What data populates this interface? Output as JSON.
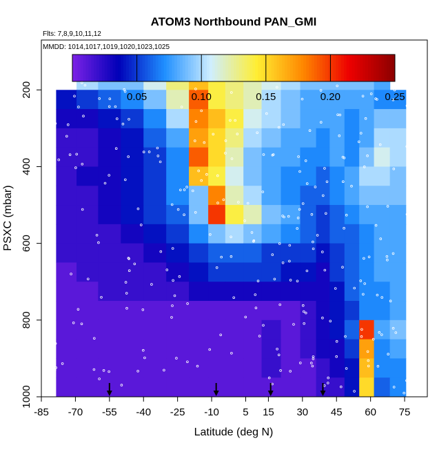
{
  "chart_data": {
    "type": "heatmap",
    "title": "ATOM3 Northbound PAN_GMI",
    "subtitle_flights": "Flts: 7,8,9,10,11,12",
    "subtitle_dates": "MMDD: 1014,1017,1019,1020,1023,1025",
    "xlabel": "Latitude (deg N)",
    "ylabel": "PSXC (mbar)",
    "xlim": [
      -85,
      85
    ],
    "ylim": [
      1000,
      70
    ],
    "y_reversed": true,
    "x_ticks": [
      "-85",
      "-70",
      "-55",
      "-40",
      "-25",
      "-10",
      "5",
      "15",
      "30",
      "45",
      "60",
      "75"
    ],
    "y_ticks": [
      "200",
      "400",
      "600",
      "800",
      "1000"
    ],
    "colorbar": {
      "min": 0.0,
      "max": 0.25,
      "ticks": [
        "0.05",
        "0.10",
        "0.15",
        "0.20",
        "0.25"
      ],
      "colors": [
        "#7d22e6",
        "#0000b8",
        "#1f8fff",
        "#cfeeff",
        "#ffee33",
        "#ff8800",
        "#ee0000",
        "#8b0000"
      ]
    },
    "arrows_latitude": [
      -55,
      -8,
      16,
      39
    ],
    "profile_latitudes": [
      -74,
      -65,
      -55,
      -45,
      -35,
      -25,
      -15,
      -8,
      0,
      8,
      16,
      25,
      33,
      39,
      45,
      52,
      58,
      65,
      72
    ],
    "pressure_levels": [
      175,
      225,
      275,
      325,
      375,
      425,
      475,
      525,
      575,
      625,
      675,
      725,
      775,
      825,
      875,
      925,
      975
    ],
    "values": [
      [
        0.1,
        0.1,
        0.09,
        0.09,
        0.11,
        0.13,
        0.16,
        0.14,
        0.13,
        0.12,
        0.11,
        0.1,
        0.09,
        0.09,
        0.09,
        0.09,
        0.09,
        0.08,
        0.08
      ],
      [
        0.04,
        0.05,
        0.06,
        0.07,
        0.09,
        0.12,
        0.19,
        0.14,
        0.13,
        0.12,
        0.1,
        0.09,
        0.08,
        0.08,
        0.08,
        0.08,
        0.08,
        0.07,
        0.07
      ],
      [
        0.03,
        0.03,
        0.04,
        0.05,
        0.07,
        0.1,
        0.18,
        0.16,
        0.14,
        0.11,
        0.1,
        0.09,
        0.08,
        0.08,
        0.08,
        0.07,
        0.08,
        0.09,
        0.09
      ],
      [
        0.02,
        0.02,
        0.03,
        0.04,
        0.06,
        0.08,
        0.17,
        0.15,
        0.13,
        0.1,
        0.09,
        0.08,
        0.08,
        0.07,
        0.08,
        0.07,
        0.08,
        0.1,
        0.1
      ],
      [
        0.02,
        0.02,
        0.03,
        0.04,
        0.05,
        0.07,
        0.19,
        0.15,
        0.12,
        0.09,
        0.08,
        0.08,
        0.07,
        0.07,
        0.08,
        0.07,
        0.09,
        0.11,
        0.1
      ],
      [
        0.02,
        0.03,
        0.03,
        0.04,
        0.05,
        0.07,
        0.16,
        0.14,
        0.11,
        0.09,
        0.08,
        0.07,
        0.07,
        0.06,
        0.07,
        0.08,
        0.1,
        0.1,
        0.09
      ],
      [
        0.02,
        0.02,
        0.03,
        0.04,
        0.05,
        0.07,
        0.09,
        0.18,
        0.12,
        0.1,
        0.08,
        0.07,
        0.06,
        0.06,
        0.07,
        0.08,
        0.09,
        0.09,
        0.09
      ],
      [
        0.02,
        0.02,
        0.03,
        0.04,
        0.05,
        0.06,
        0.09,
        0.2,
        0.14,
        0.12,
        0.09,
        0.08,
        0.06,
        0.05,
        0.06,
        0.07,
        0.08,
        0.08,
        0.08
      ],
      [
        0.02,
        0.02,
        0.02,
        0.03,
        0.04,
        0.05,
        0.07,
        0.09,
        0.1,
        0.09,
        0.08,
        0.07,
        0.06,
        0.05,
        0.06,
        0.06,
        0.07,
        0.08,
        0.08
      ],
      [
        0.02,
        0.02,
        0.02,
        0.02,
        0.03,
        0.04,
        0.05,
        0.06,
        0.06,
        0.06,
        0.05,
        0.05,
        0.05,
        0.04,
        0.05,
        0.06,
        0.07,
        0.08,
        0.08
      ],
      [
        0.01,
        0.02,
        0.02,
        0.02,
        0.02,
        0.03,
        0.04,
        0.05,
        0.05,
        0.05,
        0.05,
        0.04,
        0.04,
        0.03,
        0.05,
        0.06,
        0.07,
        0.08,
        0.08
      ],
      [
        0.01,
        0.01,
        0.02,
        0.02,
        0.02,
        0.02,
        0.03,
        0.03,
        0.03,
        0.03,
        0.03,
        0.03,
        0.03,
        0.03,
        0.04,
        0.06,
        0.07,
        0.07,
        0.08
      ],
      [
        0.01,
        0.01,
        0.01,
        0.01,
        0.01,
        0.01,
        0.01,
        0.01,
        0.01,
        0.01,
        0.01,
        0.01,
        0.02,
        0.03,
        0.04,
        0.05,
        0.07,
        0.07,
        0.08
      ],
      [
        0.01,
        0.01,
        0.01,
        0.01,
        0.01,
        0.01,
        0.01,
        0.01,
        0.01,
        0.01,
        0.02,
        0.01,
        0.02,
        0.03,
        0.04,
        0.06,
        0.2,
        0.08,
        0.09
      ],
      [
        0.01,
        0.01,
        0.01,
        0.01,
        0.01,
        0.01,
        0.01,
        0.01,
        0.01,
        0.01,
        0.02,
        0.01,
        0.02,
        0.03,
        0.03,
        0.05,
        0.17,
        0.07,
        0.08
      ],
      [
        0.01,
        0.01,
        0.01,
        0.01,
        0.01,
        0.01,
        0.01,
        0.01,
        0.01,
        0.01,
        0.02,
        0.01,
        0.01,
        0.02,
        0.03,
        0.04,
        0.16,
        0.07,
        0.07
      ],
      [
        0.01,
        0.01,
        0.01,
        0.01,
        0.01,
        0.01,
        0.01,
        0.01,
        0.01,
        0.01,
        0.01,
        0.01,
        0.01,
        0.02,
        0.02,
        0.04,
        0.15,
        0.06,
        0.07
      ]
    ]
  }
}
